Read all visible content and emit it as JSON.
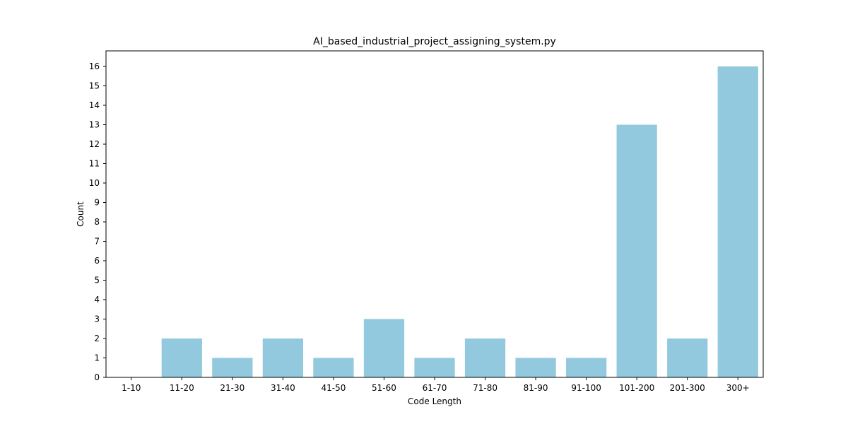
{
  "chart_data": {
    "type": "bar",
    "title": "AI_based_industrial_project_assigning_system.py",
    "xlabel": "Code Length",
    "ylabel": "Count",
    "categories": [
      "1-10",
      "11-20",
      "21-30",
      "31-40",
      "41-50",
      "51-60",
      "61-70",
      "71-80",
      "81-90",
      "91-100",
      "101-200",
      "201-300",
      "300+"
    ],
    "values": [
      0,
      2,
      1,
      2,
      1,
      3,
      1,
      2,
      1,
      1,
      13,
      2,
      16
    ],
    "ylim": [
      0,
      16.8
    ],
    "yticks": [
      0,
      1,
      2,
      3,
      4,
      5,
      6,
      7,
      8,
      9,
      10,
      11,
      12,
      13,
      14,
      15,
      16
    ],
    "bar_color": "#92c9de",
    "grid": false,
    "legend": "none"
  }
}
